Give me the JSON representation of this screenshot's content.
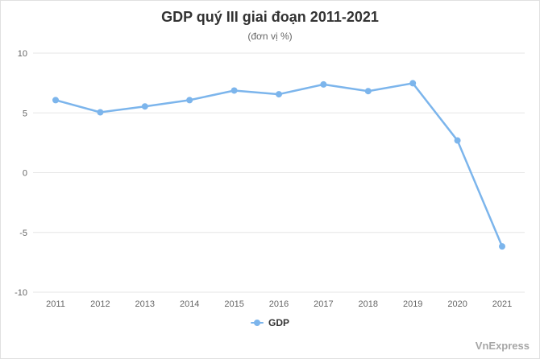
{
  "header": {
    "title": "GDP quý III giai đoạn 2011-2021",
    "subtitle": "(đơn vị %)"
  },
  "legend": {
    "label": "GDP"
  },
  "watermark": "VnExpress",
  "colors": {
    "series": "#7cb5ec",
    "grid": "#e6e6e6",
    "axis_text": "#666666",
    "title_text": "#333333",
    "subtitle_text": "#666666",
    "watermark_text": "#a6a6a6"
  },
  "chart_data": {
    "type": "line",
    "title": "GDP quý III giai đoạn 2011-2021",
    "subtitle": "(đơn vị %)",
    "categories": [
      "2011",
      "2012",
      "2013",
      "2014",
      "2015",
      "2016",
      "2017",
      "2018",
      "2019",
      "2020",
      "2021"
    ],
    "series": [
      {
        "name": "GDP",
        "values": [
          6.07,
          5.05,
          5.54,
          6.07,
          6.87,
          6.56,
          7.38,
          6.82,
          7.48,
          2.69,
          -6.17
        ]
      }
    ],
    "ylim": [
      -10,
      10
    ],
    "yticks": [
      10,
      5,
      0,
      -5,
      -10
    ],
    "grid": true,
    "legend_position": "bottom"
  }
}
